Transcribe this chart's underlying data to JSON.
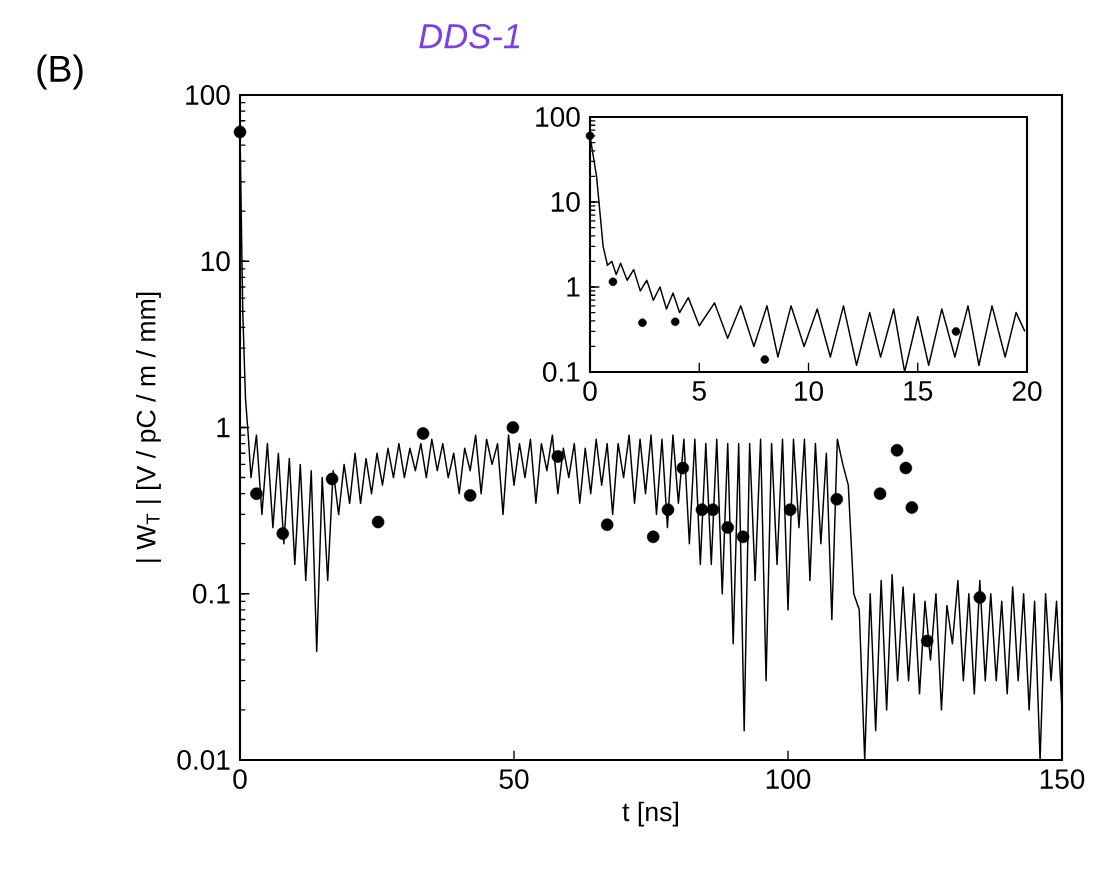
{
  "chart_data": [
    {
      "type": "line",
      "title": "DDS-1",
      "xlabel": "t [ns]",
      "ylabel": "| W$_{T}$ | [V / pC / m / mm]",
      "annotations": [
        "(B)"
      ],
      "log": "y",
      "xlim": [
        0,
        150
      ],
      "ylim": [
        0.01,
        100
      ],
      "xticks": [
        0,
        50,
        100,
        150
      ],
      "yticks": [
        0.01,
        0.1,
        1,
        10,
        100
      ],
      "series": [
        {
          "color": "#000000",
          "marker": "none",
          "line_style": "solid",
          "x": [
            0,
            0.5,
            1,
            1.5,
            2,
            3,
            4,
            5,
            6,
            7,
            8,
            9,
            10,
            11,
            12,
            13,
            14,
            15,
            16,
            17,
            18,
            19,
            20,
            21,
            22,
            23,
            24,
            25,
            26,
            27,
            28,
            29,
            30,
            31,
            32,
            33,
            34,
            35,
            36,
            37,
            38,
            39,
            40,
            41,
            42,
            43,
            44,
            45,
            46,
            47,
            48,
            49,
            50,
            51,
            52,
            53,
            54,
            55,
            56,
            57,
            58,
            59,
            60,
            61,
            62,
            63,
            64,
            65,
            66,
            67,
            68,
            69,
            70,
            71,
            72,
            73,
            74,
            75,
            76,
            77,
            78,
            79,
            80,
            81,
            82,
            83,
            84,
            85,
            86,
            87,
            88,
            89,
            90,
            91,
            92,
            93,
            94,
            95,
            96,
            97,
            98,
            99,
            100,
            101,
            102,
            103,
            104,
            105,
            106,
            107,
            108,
            109,
            110,
            111,
            112,
            113,
            114,
            115,
            116,
            117,
            118,
            119,
            120,
            121,
            122,
            123,
            124,
            125,
            126,
            127,
            128,
            129,
            130,
            131,
            132,
            133,
            134,
            135,
            136,
            137,
            138,
            139,
            140,
            141,
            142,
            143,
            144,
            145,
            146,
            147,
            148,
            149,
            150
          ],
          "values": [
            60,
            5,
            1.5,
            0.9,
            0.5,
            0.9,
            0.3,
            0.8,
            0.25,
            0.7,
            0.2,
            0.65,
            0.15,
            0.6,
            0.12,
            0.55,
            0.045,
            0.5,
            0.12,
            0.55,
            0.3,
            0.6,
            0.35,
            0.7,
            0.35,
            0.65,
            0.4,
            0.7,
            0.45,
            0.75,
            0.5,
            0.8,
            0.5,
            0.75,
            0.55,
            0.8,
            0.5,
            0.85,
            0.55,
            0.8,
            0.5,
            0.7,
            0.4,
            0.75,
            0.55,
            0.9,
            0.4,
            0.85,
            0.6,
            0.8,
            0.3,
            0.9,
            0.45,
            0.8,
            0.5,
            0.85,
            0.35,
            0.8,
            0.55,
            0.9,
            0.4,
            0.75,
            0.5,
            0.8,
            0.35,
            0.75,
            0.4,
            0.85,
            0.45,
            0.8,
            0.3,
            0.8,
            0.5,
            0.9,
            0.35,
            0.85,
            0.4,
            0.9,
            0.3,
            0.85,
            0.25,
            0.9,
            0.35,
            0.85,
            0.2,
            0.85,
            0.15,
            0.8,
            0.15,
            0.85,
            0.1,
            0.8,
            0.05,
            0.8,
            0.015,
            0.8,
            0.12,
            0.85,
            0.03,
            0.8,
            0.15,
            0.85,
            0.08,
            0.85,
            0.25,
            0.85,
            0.12,
            0.8,
            0.2,
            0.7,
            0.07,
            0.85,
            0.6,
            0.45,
            0.1,
            0.08,
            0.01,
            0.1,
            0.015,
            0.12,
            0.02,
            0.13,
            0.03,
            0.11,
            0.03,
            0.1,
            0.025,
            0.09,
            0.04,
            0.1,
            0.02,
            0.085,
            0.05,
            0.12,
            0.03,
            0.1,
            0.025,
            0.12,
            0.03,
            0.1,
            0.03,
            0.09,
            0.025,
            0.11,
            0.03,
            0.1,
            0.02,
            0.09,
            0.01,
            0.1,
            0.03,
            0.09,
            0.02
          ]
        },
        {
          "type": "scatter",
          "color": "#000000",
          "marker": "circle",
          "x": [
            0,
            3,
            7.8,
            16.8,
            25.2,
            33.4,
            42,
            49.8,
            58,
            67,
            75.4,
            78.1,
            80.8,
            84.3,
            86.3,
            89,
            91.8,
            100.4,
            108.9,
            116.8,
            119.9,
            121.5,
            122.6,
            125.4,
            135
          ],
          "values": [
            60,
            0.4,
            0.23,
            0.49,
            0.27,
            0.92,
            0.39,
            1,
            0.67,
            0.26,
            0.22,
            0.32,
            0.57,
            0.32,
            0.32,
            0.25,
            0.22,
            0.32,
            0.37,
            0.4,
            0.73,
            0.57,
            0.33,
            0.052,
            0.095
          ]
        }
      ]
    },
    {
      "type": "line",
      "log": "y",
      "xlim": [
        0,
        20
      ],
      "ylim": [
        0.1,
        100
      ],
      "xticks": [
        0,
        5,
        10,
        15,
        20
      ],
      "yticks": [
        0.1,
        1,
        10,
        100
      ],
      "series": [
        {
          "color": "#000000",
          "marker": "none",
          "line_style": "solid",
          "x": [
            0,
            0.3,
            0.6,
            0.8,
            1.0,
            1.2,
            1.4,
            1.7,
            2.0,
            2.3,
            2.6,
            2.9,
            3.2,
            3.5,
            3.8,
            4.1,
            4.5,
            5.0,
            5.7,
            6.3,
            6.9,
            7.5,
            8.1,
            8.6,
            9.2,
            9.8,
            10.4,
            11.0,
            11.6,
            12.2,
            12.8,
            13.3,
            13.9,
            14.4,
            15.0,
            15.5,
            16.1,
            16.7,
            17.3,
            17.8,
            18.4,
            19.0,
            19.5,
            19.9
          ],
          "values": [
            60,
            20,
            3,
            1.8,
            2.0,
            1.4,
            1.9,
            1.2,
            1.6,
            0.9,
            1.2,
            0.7,
            1.0,
            0.55,
            0.85,
            0.5,
            0.75,
            0.35,
            0.65,
            0.25,
            0.6,
            0.2,
            0.6,
            0.15,
            0.6,
            0.2,
            0.55,
            0.15,
            0.6,
            0.12,
            0.5,
            0.15,
            0.55,
            0.1,
            0.45,
            0.12,
            0.55,
            0.15,
            0.6,
            0.12,
            0.6,
            0.15,
            0.5,
            0.3
          ]
        },
        {
          "type": "scatter",
          "color": "#000000",
          "marker": "circle",
          "x": [
            0,
            1.05,
            2.4,
            3.9,
            8,
            16.75
          ],
          "values": [
            60,
            1.15,
            0.38,
            0.39,
            0.14,
            0.3
          ]
        }
      ]
    }
  ]
}
